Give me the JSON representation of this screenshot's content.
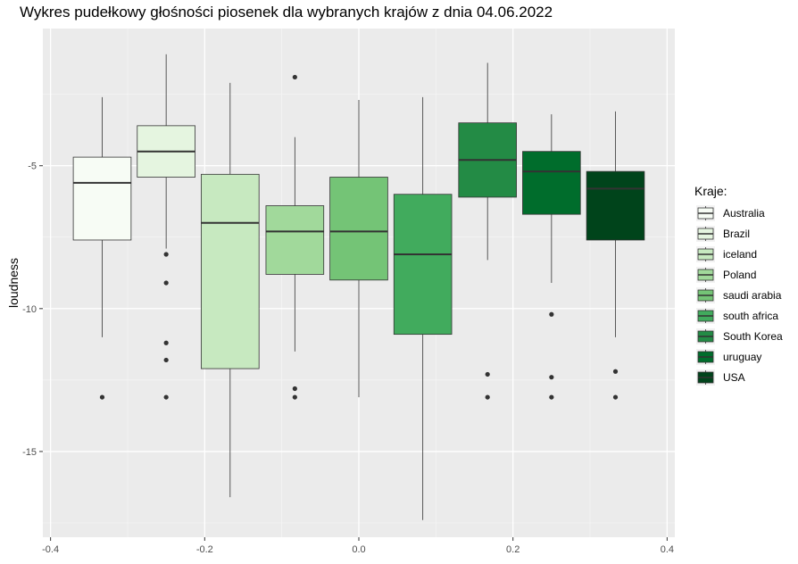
{
  "chart_data": {
    "type": "boxplot",
    "title": "Wykres pudełkowy głośności piosenek dla wybranych krajów z dnia 04.06.2022",
    "xlabel": "",
    "ylabel": "loudness",
    "xlim": [
      -0.41,
      0.41
    ],
    "ylim": [
      -18.0,
      -0.2
    ],
    "x_ticks": [
      -0.4,
      -0.2,
      0.0,
      0.2,
      0.4
    ],
    "x_tick_labels": [
      "-0.4",
      "-0.2",
      "0.0",
      "0.2",
      "0.4"
    ],
    "y_ticks": [
      -15,
      -10,
      -5
    ],
    "y_tick_labels": [
      "-15",
      "-10",
      "-5"
    ],
    "grid": true,
    "legend": {
      "title": "Kraje:",
      "position": "right"
    },
    "series": [
      {
        "name": "Australia",
        "color": "#f7fcf5",
        "x": -0.333,
        "min": -11.0,
        "q1": -7.6,
        "median": -5.6,
        "q3": -4.7,
        "max": -2.6,
        "outliers": [
          -13.1
        ]
      },
      {
        "name": "Brazil",
        "color": "#e5f5e0",
        "x": -0.25,
        "min": -7.9,
        "q1": -5.4,
        "median": -4.5,
        "q3": -3.6,
        "max": -1.1,
        "outliers": [
          -8.1,
          -9.1,
          -11.2,
          -11.8,
          -13.1
        ]
      },
      {
        "name": "iceland",
        "color": "#c7e9c0",
        "x": -0.167,
        "min": -16.6,
        "q1": -12.1,
        "median": -7.0,
        "q3": -5.3,
        "max": -2.1,
        "outliers": []
      },
      {
        "name": "Poland",
        "color": "#a1d99b",
        "x": -0.083,
        "min": -11.5,
        "q1": -8.8,
        "median": -7.3,
        "q3": -6.4,
        "max": -4.0,
        "outliers": [
          -1.9,
          -12.8,
          -13.1
        ]
      },
      {
        "name": "saudi arabia",
        "color": "#74c476",
        "x": 0.0,
        "min": -13.1,
        "q1": -9.0,
        "median": -7.3,
        "q3": -5.4,
        "max": -2.7,
        "outliers": []
      },
      {
        "name": "south africa",
        "color": "#41ab5d",
        "x": 0.083,
        "min": -17.4,
        "q1": -10.9,
        "median": -8.1,
        "q3": -6.0,
        "max": -2.6,
        "outliers": []
      },
      {
        "name": "South Korea",
        "color": "#238b45",
        "x": 0.167,
        "min": -8.3,
        "q1": -6.1,
        "median": -4.8,
        "q3": -3.5,
        "max": -1.4,
        "outliers": [
          -12.3,
          -13.1
        ]
      },
      {
        "name": "uruguay",
        "color": "#006d2c",
        "x": 0.25,
        "min": -9.1,
        "q1": -6.7,
        "median": -5.2,
        "q3": -4.5,
        "max": -3.2,
        "outliers": [
          -10.2,
          -12.4,
          -13.1
        ]
      },
      {
        "name": "USA",
        "color": "#00441b",
        "x": 0.333,
        "min": -11.0,
        "q1": -7.6,
        "median": -5.8,
        "q3": -5.2,
        "max": -3.1,
        "outliers": [
          -12.2,
          -13.1
        ]
      }
    ]
  }
}
